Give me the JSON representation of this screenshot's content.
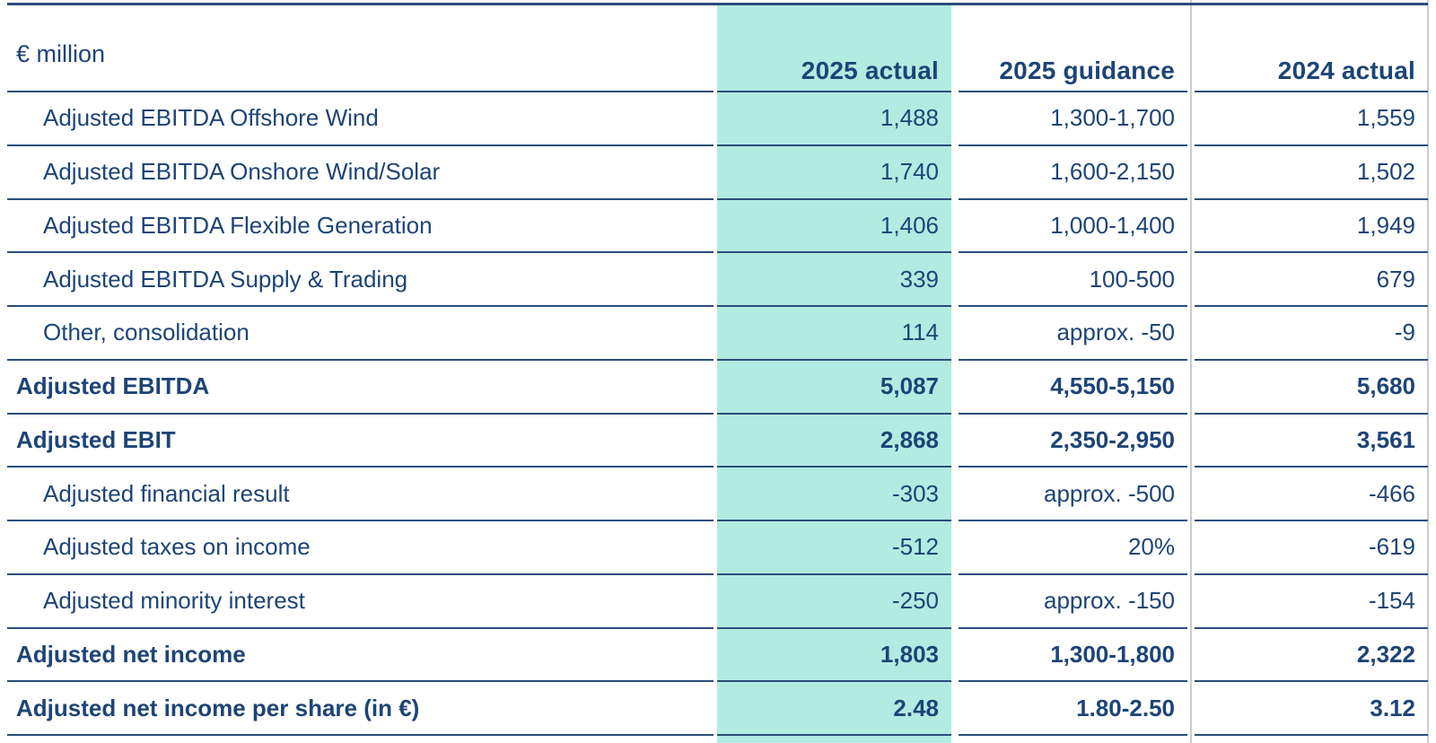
{
  "table": {
    "unit_label": "€ million",
    "columns": [
      {
        "label": "2025 actual",
        "highlighted": true
      },
      {
        "label": "2025 guidance",
        "highlighted": false
      },
      {
        "label": "2024 actual",
        "highlighted": false
      }
    ],
    "rows": [
      {
        "label": "Adjusted EBITDA Offshore Wind",
        "indent": true,
        "bold": false,
        "values": [
          "1,488",
          "1,300-1,700",
          "1,559"
        ]
      },
      {
        "label": "Adjusted EBITDA Onshore Wind/Solar",
        "indent": true,
        "bold": false,
        "values": [
          "1,740",
          "1,600-2,150",
          "1,502"
        ]
      },
      {
        "label": "Adjusted EBITDA Flexible Generation",
        "indent": true,
        "bold": false,
        "values": [
          "1,406",
          "1,000-1,400",
          "1,949"
        ]
      },
      {
        "label": "Adjusted EBITDA Supply & Trading",
        "indent": true,
        "bold": false,
        "values": [
          "339",
          "100-500",
          "679"
        ]
      },
      {
        "label": "Other, consolidation",
        "indent": true,
        "bold": false,
        "values": [
          "114",
          "approx. -50",
          "-9"
        ]
      },
      {
        "label": "Adjusted EBITDA",
        "indent": false,
        "bold": true,
        "values": [
          "5,087",
          "4,550-5,150",
          "5,680"
        ]
      },
      {
        "label": "Adjusted EBIT",
        "indent": false,
        "bold": true,
        "values": [
          "2,868",
          "2,350-2,950",
          "3,561"
        ]
      },
      {
        "label": "Adjusted financial result",
        "indent": true,
        "bold": false,
        "values": [
          "-303",
          "approx. -500",
          "-466"
        ]
      },
      {
        "label": "Adjusted taxes on income",
        "indent": true,
        "bold": false,
        "values": [
          "-512",
          "20%",
          "-619"
        ]
      },
      {
        "label": "Adjusted minority interest",
        "indent": true,
        "bold": false,
        "values": [
          "-250",
          "approx. -150",
          "-154"
        ]
      },
      {
        "label": "Adjusted net income",
        "indent": false,
        "bold": true,
        "values": [
          "1,803",
          "1,300-1,800",
          "2,322"
        ]
      },
      {
        "label": "Adjusted net income per share (in €)",
        "indent": false,
        "bold": true,
        "values": [
          "2.48",
          "1.80-2.50",
          "3.12"
        ]
      }
    ],
    "colors": {
      "text_navy": "#1d4477",
      "row_line": "#2b4d7c",
      "highlight_teal": "#b2ebe1",
      "column_divider": "#c9ccd0",
      "background": "#ffffff"
    }
  }
}
